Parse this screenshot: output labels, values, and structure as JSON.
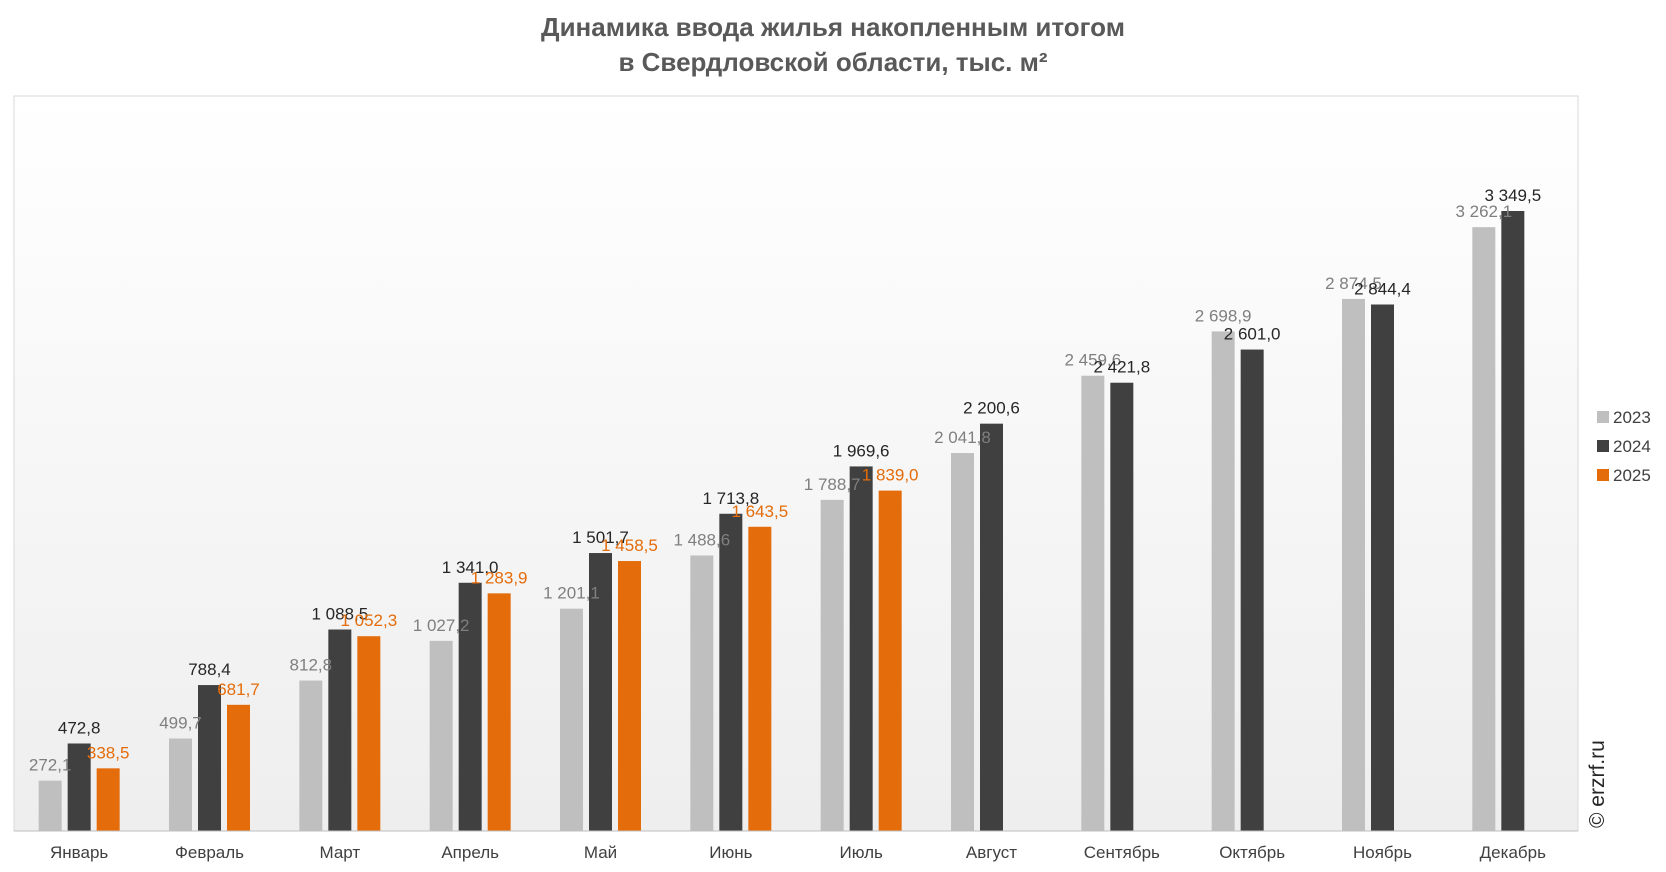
{
  "chart_data": {
    "type": "bar",
    "title": "Динамика ввода жилья накопленным итогом",
    "subtitle": "в Свердловской области, тыс. м²",
    "categories": [
      "Январь",
      "Февраль",
      "Март",
      "Апрель",
      "Май",
      "Июнь",
      "Июль",
      "Август",
      "Сентябрь",
      "Октябрь",
      "Ноябрь",
      "Декабрь"
    ],
    "series": [
      {
        "name": "2023",
        "color": "#bfbfbf",
        "label_color": "#7f7f7f",
        "values": [
          272.1,
          499.7,
          812.8,
          1027.2,
          1201.1,
          1488.6,
          1788.7,
          2041.8,
          2459.6,
          2698.9,
          2874.5,
          3262.1
        ],
        "labels": [
          "272,1",
          "499,7",
          "812,8",
          "1 027,2",
          "1 201,1",
          "1 488,6",
          "1 788,7",
          "2 041,8",
          "2 459,6",
          "2 698,9",
          "2 874,5",
          "3 262,1"
        ]
      },
      {
        "name": "2024",
        "color": "#404040",
        "label_color": "#262626",
        "values": [
          472.8,
          788.4,
          1088.5,
          1341.0,
          1501.7,
          1713.8,
          1969.6,
          2200.6,
          2421.8,
          2601.0,
          2844.4,
          3349.5
        ],
        "labels": [
          "472,8",
          "788,4",
          "1 088,5",
          "1 341,0",
          "1 501,7",
          "1 713,8",
          "1 969,6",
          "2 200,6",
          "2 421,8",
          "2 601,0",
          "2 844,4",
          "3 349,5"
        ]
      },
      {
        "name": "2025",
        "color": "#e46c0a",
        "label_color": "#e46c0a",
        "values": [
          338.5,
          681.7,
          1052.3,
          1283.9,
          1458.5,
          1643.5,
          1839.0,
          null,
          null,
          null,
          null,
          null
        ],
        "labels": [
          "338,5",
          "681,7",
          "1 052,3",
          "1 283,9",
          "1 458,5",
          "1 643,5",
          "1 839,0",
          null,
          null,
          null,
          null,
          null
        ]
      }
    ],
    "ylim": [
      0,
      3600
    ],
    "grid": false,
    "legend_position": "right",
    "watermark": "© erzrf.ru"
  }
}
